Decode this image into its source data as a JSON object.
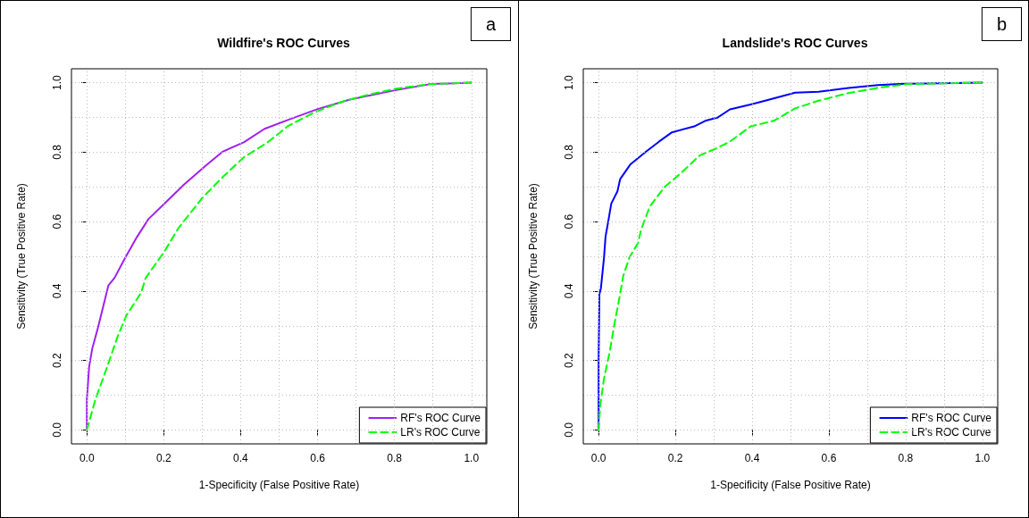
{
  "chart_data": [
    {
      "type": "line",
      "title": "Wildfire's ROC Curves",
      "xlabel": "1-Specificity (False Positive Rate)",
      "ylabel": "Sensitivity (True Positive Rate)",
      "annotations": [
        "a"
      ],
      "xlim": [
        -0.04,
        1.04
      ],
      "ylim": [
        -0.04,
        1.04
      ],
      "xticks": [
        {
          "value": 0,
          "label": "0.0"
        },
        {
          "value": 0.1,
          "label": null
        },
        {
          "value": 0.2,
          "label": "0.2"
        },
        {
          "value": 0.3,
          "label": null
        },
        {
          "value": 0.4,
          "label": "0.4"
        },
        {
          "value": 0.5,
          "label": null
        },
        {
          "value": 0.6,
          "label": "0.6"
        },
        {
          "value": 0.7,
          "label": null
        },
        {
          "value": 0.8,
          "label": "0.8"
        },
        {
          "value": 0.9,
          "label": null
        },
        {
          "value": 1,
          "label": "1.0"
        }
      ],
      "yticks": [
        {
          "value": 0,
          "label": "0.0"
        },
        {
          "value": 0.1,
          "label": null
        },
        {
          "value": 0.2,
          "label": "0.2"
        },
        {
          "value": 0.3,
          "label": null
        },
        {
          "value": 0.4,
          "label": "0.4"
        },
        {
          "value": 0.5,
          "label": null
        },
        {
          "value": 0.6,
          "label": "0.6"
        },
        {
          "value": 0.7,
          "label": null
        },
        {
          "value": 0.8,
          "label": "0.8"
        },
        {
          "value": 0.9,
          "label": null
        },
        {
          "value": 1,
          "label": "1.0"
        }
      ],
      "grid": true,
      "legend": "bottom right",
      "marker": "none",
      "series": [
        {
          "name": "RF's ROC Curve",
          "color": "#a020f0",
          "line_style": "solid",
          "x": [
            0,
            0,
            0.006,
            0.014,
            0.029,
            0.056,
            0.072,
            0.099,
            0.13,
            0.16,
            0.2,
            0.253,
            0.307,
            0.354,
            0.408,
            0.462,
            0.524,
            0.6,
            0.686,
            0.801,
            0.894,
            1
          ],
          "values": [
            0,
            0.087,
            0.182,
            0.234,
            0.295,
            0.416,
            0.438,
            0.494,
            0.555,
            0.607,
            0.65,
            0.707,
            0.759,
            0.802,
            0.828,
            0.867,
            0.893,
            0.924,
            0.952,
            0.978,
            0.996,
            1
          ]
        },
        {
          "name": "LR's ROC Curve",
          "color": "#00ff00",
          "line_style": "dashed",
          "x": [
            0,
            0.022,
            0.053,
            0.08,
            0.103,
            0.141,
            0.153,
            0.2,
            0.238,
            0.3,
            0.354,
            0.408,
            0.47,
            0.524,
            0.593,
            0.663,
            0.724,
            0.801,
            0.894,
            1
          ],
          "values": [
            0,
            0.087,
            0.182,
            0.269,
            0.33,
            0.395,
            0.438,
            0.511,
            0.581,
            0.668,
            0.729,
            0.785,
            0.828,
            0.876,
            0.915,
            0.945,
            0.963,
            0.982,
            0.996,
            1
          ]
        }
      ]
    },
    {
      "type": "line",
      "title": "Landslide's ROC Curves",
      "xlabel": "1-Specificity (False Positive Rate)",
      "ylabel": "Sensitivity (True Positive Rate)",
      "annotations": [
        "b"
      ],
      "xlim": [
        -0.04,
        1.04
      ],
      "ylim": [
        -0.04,
        1.04
      ],
      "xticks": [
        {
          "value": 0,
          "label": "0.0"
        },
        {
          "value": 0.1,
          "label": null
        },
        {
          "value": 0.2,
          "label": "0.2"
        },
        {
          "value": 0.3,
          "label": null
        },
        {
          "value": 0.4,
          "label": "0.4"
        },
        {
          "value": 0.5,
          "label": null
        },
        {
          "value": 0.6,
          "label": "0.6"
        },
        {
          "value": 0.7,
          "label": null
        },
        {
          "value": 0.8,
          "label": "0.8"
        },
        {
          "value": 0.9,
          "label": null
        },
        {
          "value": 1,
          "label": "1.0"
        }
      ],
      "yticks": [
        {
          "value": 0,
          "label": "0.0"
        },
        {
          "value": 0.1,
          "label": null
        },
        {
          "value": 0.2,
          "label": "0.2"
        },
        {
          "value": 0.3,
          "label": null
        },
        {
          "value": 0.4,
          "label": "0.4"
        },
        {
          "value": 0.5,
          "label": null
        },
        {
          "value": 0.6,
          "label": "0.6"
        },
        {
          "value": 0.7,
          "label": null
        },
        {
          "value": 0.8,
          "label": "0.8"
        },
        {
          "value": 0.9,
          "label": null
        },
        {
          "value": 1,
          "label": "1.0"
        }
      ],
      "grid": true,
      "legend": "bottom right",
      "marker": "none",
      "series": [
        {
          "name": "RF's ROC Curve",
          "color": "#0000ff",
          "line_style": "solid",
          "x": [
            0,
            0,
            0.002,
            0.006,
            0.014,
            0.018,
            0.025,
            0.033,
            0.049,
            0.056,
            0.083,
            0.122,
            0.157,
            0.191,
            0.249,
            0.28,
            0.311,
            0.342,
            0.396,
            0.434,
            0.512,
            0.573,
            0.651,
            0.728,
            0.797,
            1
          ],
          "values": [
            0,
            0.2,
            0.391,
            0.409,
            0.496,
            0.557,
            0.6,
            0.652,
            0.687,
            0.722,
            0.765,
            0.8,
            0.83,
            0.857,
            0.874,
            0.891,
            0.9,
            0.923,
            0.937,
            0.948,
            0.971,
            0.974,
            0.985,
            0.993,
            0.997,
            1
          ]
        },
        {
          "name": "LR's ROC Curve",
          "color": "#00ff00",
          "line_style": "dashed",
          "x": [
            0,
            0.004,
            0.014,
            0.029,
            0.041,
            0.056,
            0.064,
            0.08,
            0.103,
            0.11,
            0.133,
            0.172,
            0.21,
            0.264,
            0.303,
            0.342,
            0.396,
            0.458,
            0.512,
            0.573,
            0.651,
            0.728,
            0.805,
            1
          ],
          "values": [
            0,
            0.07,
            0.148,
            0.226,
            0.304,
            0.391,
            0.443,
            0.496,
            0.539,
            0.574,
            0.643,
            0.7,
            0.735,
            0.791,
            0.809,
            0.83,
            0.874,
            0.891,
            0.926,
            0.948,
            0.97,
            0.985,
            0.996,
            1
          ]
        }
      ]
    }
  ]
}
